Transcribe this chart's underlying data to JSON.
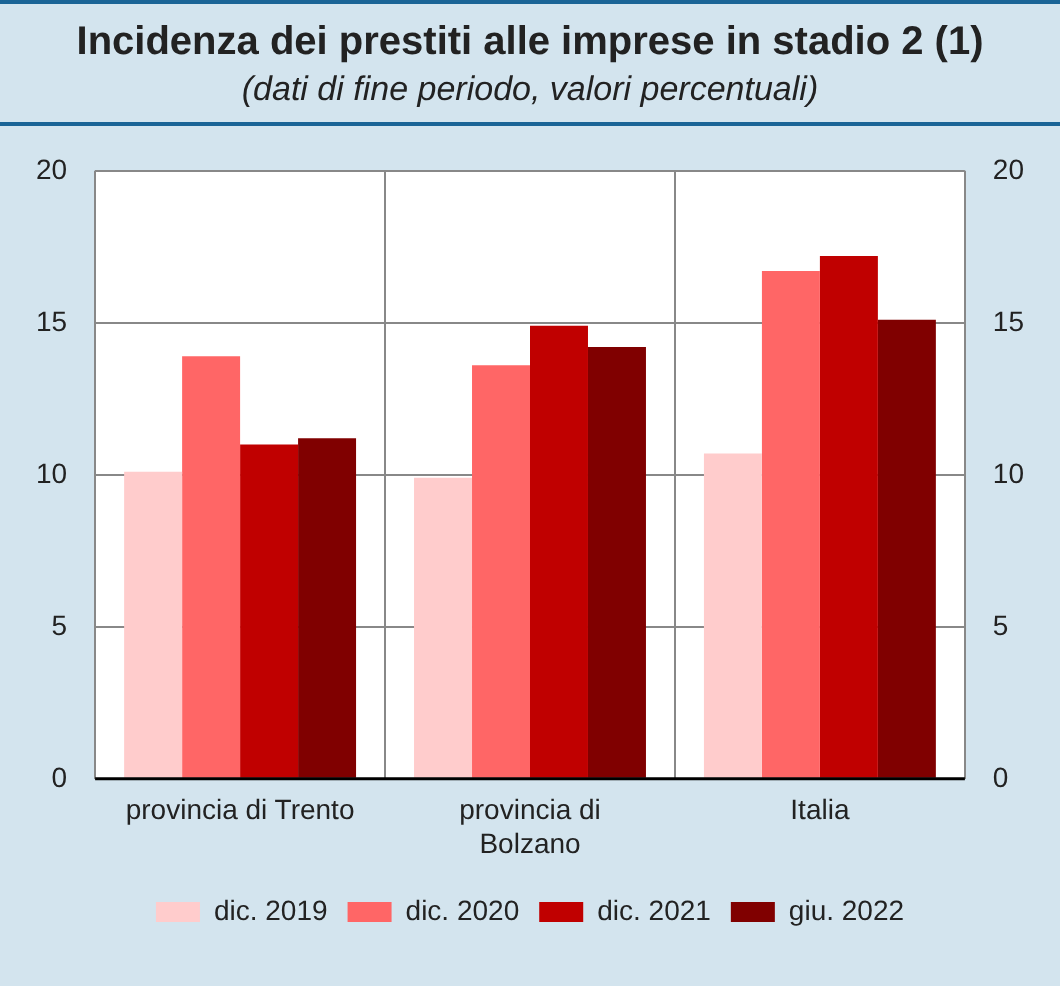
{
  "chart_data": {
    "type": "bar",
    "title": "Incidenza dei prestiti alle imprese in stadio 2 (1)",
    "subtitle": "(dati di fine periodo, valori percentuali)",
    "categories": [
      "provincia di Trento",
      "provincia di Bolzano",
      "Italia"
    ],
    "series": [
      {
        "name": "dic. 2019",
        "color": "#ffcccc",
        "values": [
          10.1,
          9.9,
          10.7
        ]
      },
      {
        "name": "dic. 2020",
        "color": "#ff6666",
        "values": [
          13.9,
          13.6,
          16.7
        ]
      },
      {
        "name": "dic. 2021",
        "color": "#c00000",
        "values": [
          11.0,
          14.9,
          17.2
        ]
      },
      {
        "name": "giu. 2022",
        "color": "#800000",
        "values": [
          11.2,
          14.2,
          15.1
        ]
      }
    ],
    "ylim": [
      0,
      20
    ],
    "yticks": [
      0,
      5,
      10,
      15,
      20
    ],
    "y2lim": [
      0,
      20
    ],
    "y2ticks": [
      0,
      5,
      10,
      15,
      20
    ],
    "grid": true,
    "legend": "bottom"
  }
}
